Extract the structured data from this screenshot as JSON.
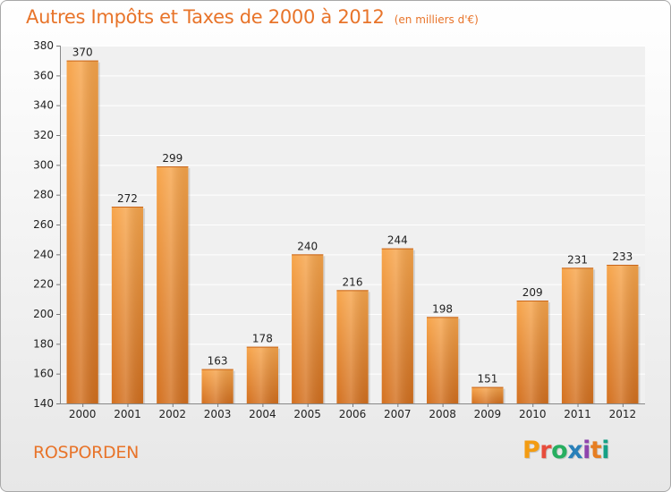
{
  "header": {
    "title": "Autres Impôts et Taxes de 2000 à 2012",
    "unit": "(en milliers d'€)"
  },
  "footer": {
    "city": "ROSPORDEN",
    "brand": "Proxiti",
    "brand_colors": [
      "#f39c12",
      "#e74c3c",
      "#27ae60",
      "#2980b9",
      "#8e44ad",
      "#e67e22",
      "#16a085"
    ]
  },
  "colors": {
    "accent": "#e8742a",
    "bar_light": "#f7a54b",
    "bar_dark": "#d3701f"
  },
  "chart_data": {
    "type": "bar",
    "title": "Autres Impôts et Taxes de 2000 à 2012",
    "subtitle": "(en milliers d'€)",
    "categories": [
      "2000",
      "2001",
      "2002",
      "2003",
      "2004",
      "2005",
      "2006",
      "2007",
      "2008",
      "2009",
      "2010",
      "2011",
      "2012"
    ],
    "values": [
      370,
      272,
      299,
      163,
      178,
      240,
      216,
      244,
      198,
      151,
      209,
      231,
      233
    ],
    "ylim": [
      140,
      380
    ],
    "yticks": [
      140,
      160,
      180,
      200,
      220,
      240,
      260,
      280,
      300,
      320,
      340,
      360,
      380
    ],
    "grid": true,
    "data_labels": true
  }
}
